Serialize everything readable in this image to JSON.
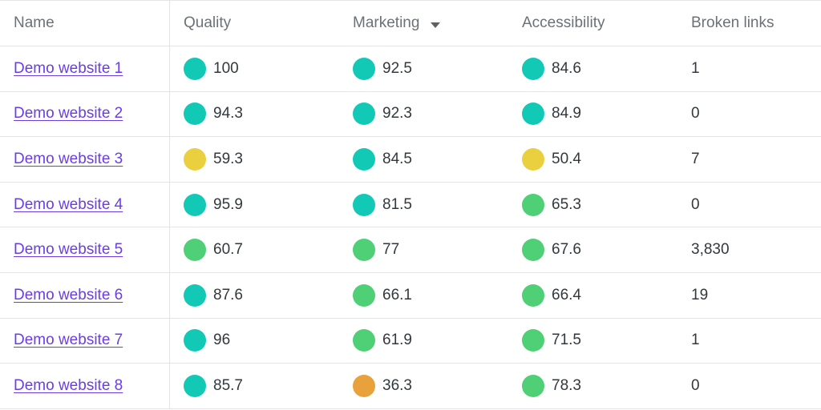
{
  "colors": {
    "teal": "#12c9b6",
    "green": "#4fcf76",
    "yellow": "#ead03f",
    "orange": "#e8a13b",
    "link": "#6a3de8"
  },
  "header": {
    "name": "Name",
    "quality": "Quality",
    "marketing": "Marketing",
    "accessibility": "Accessibility",
    "broken_links": "Broken links",
    "sort_icon": "caret-down-icon"
  },
  "rows": [
    {
      "name": "Demo website 1",
      "quality": {
        "value": "100",
        "status": "teal"
      },
      "marketing": {
        "value": "92.5",
        "status": "teal"
      },
      "accessibility": {
        "value": "84.6",
        "status": "teal"
      },
      "broken_links": "1"
    },
    {
      "name": "Demo website 2",
      "quality": {
        "value": "94.3",
        "status": "teal"
      },
      "marketing": {
        "value": "92.3",
        "status": "teal"
      },
      "accessibility": {
        "value": "84.9",
        "status": "teal"
      },
      "broken_links": "0"
    },
    {
      "name": "Demo website 3",
      "quality": {
        "value": "59.3",
        "status": "yellow"
      },
      "marketing": {
        "value": "84.5",
        "status": "teal"
      },
      "accessibility": {
        "value": "50.4",
        "status": "yellow"
      },
      "broken_links": "7"
    },
    {
      "name": "Demo website 4",
      "quality": {
        "value": "95.9",
        "status": "teal"
      },
      "marketing": {
        "value": "81.5",
        "status": "teal"
      },
      "accessibility": {
        "value": "65.3",
        "status": "green"
      },
      "broken_links": "0"
    },
    {
      "name": "Demo website 5",
      "quality": {
        "value": "60.7",
        "status": "green"
      },
      "marketing": {
        "value": "77",
        "status": "green"
      },
      "accessibility": {
        "value": "67.6",
        "status": "green"
      },
      "broken_links": "3,830"
    },
    {
      "name": "Demo website 6",
      "quality": {
        "value": "87.6",
        "status": "teal"
      },
      "marketing": {
        "value": "66.1",
        "status": "green"
      },
      "accessibility": {
        "value": "66.4",
        "status": "green"
      },
      "broken_links": "19"
    },
    {
      "name": "Demo website 7",
      "quality": {
        "value": "96",
        "status": "teal"
      },
      "marketing": {
        "value": "61.9",
        "status": "green"
      },
      "accessibility": {
        "value": "71.5",
        "status": "green"
      },
      "broken_links": "1"
    },
    {
      "name": "Demo website 8",
      "quality": {
        "value": "85.7",
        "status": "teal"
      },
      "marketing": {
        "value": "36.3",
        "status": "orange"
      },
      "accessibility": {
        "value": "78.3",
        "status": "green"
      },
      "broken_links": "0"
    }
  ]
}
